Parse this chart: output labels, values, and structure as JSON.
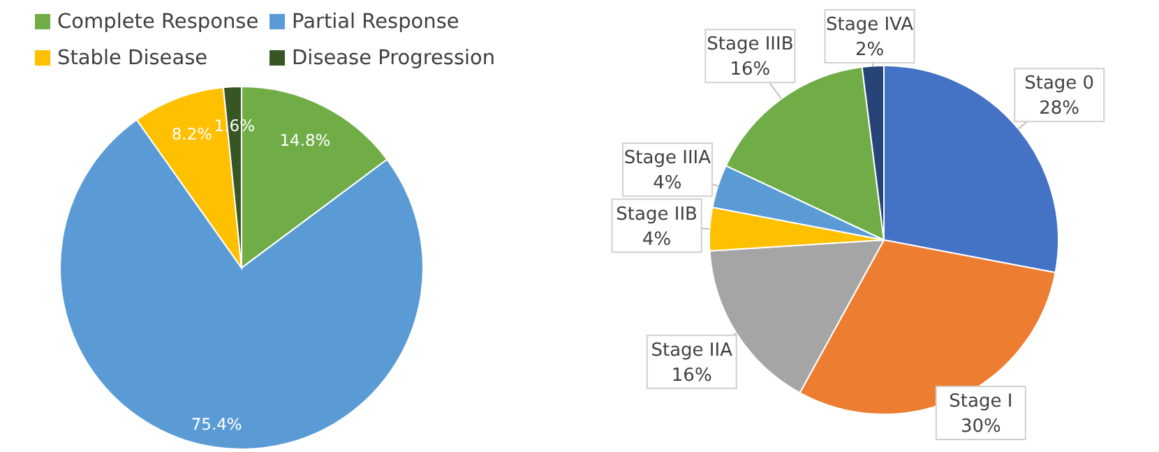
{
  "chart_data": [
    {
      "type": "pie",
      "categories": [
        "Complete Response",
        "Partial Response",
        "Stable Disease",
        "Disease Progression"
      ],
      "values": [
        14.8,
        75.4,
        8.2,
        1.6
      ],
      "value_labels": [
        "14.8%",
        "75.4%",
        "8.2%",
        "1.6%"
      ],
      "colors": [
        "#70ad47",
        "#5b9bd5",
        "#ffc000",
        "#375623"
      ],
      "legend": "top"
    },
    {
      "type": "pie",
      "categories": [
        "Stage 0",
        "Stage I",
        "Stage IIA",
        "Stage IIB",
        "Stage IIIA",
        "Stage IIIB",
        "Stage IVA"
      ],
      "values": [
        28,
        30,
        16,
        4,
        4,
        16,
        2
      ],
      "value_labels": [
        "28%",
        "30%",
        "16%",
        "4%",
        "4%",
        "16%",
        "2%"
      ],
      "colors": [
        "#4472c4",
        "#ed7d31",
        "#a5a5a5",
        "#ffc000",
        "#5b9bd5",
        "#70ad47",
        "#264478"
      ]
    }
  ]
}
